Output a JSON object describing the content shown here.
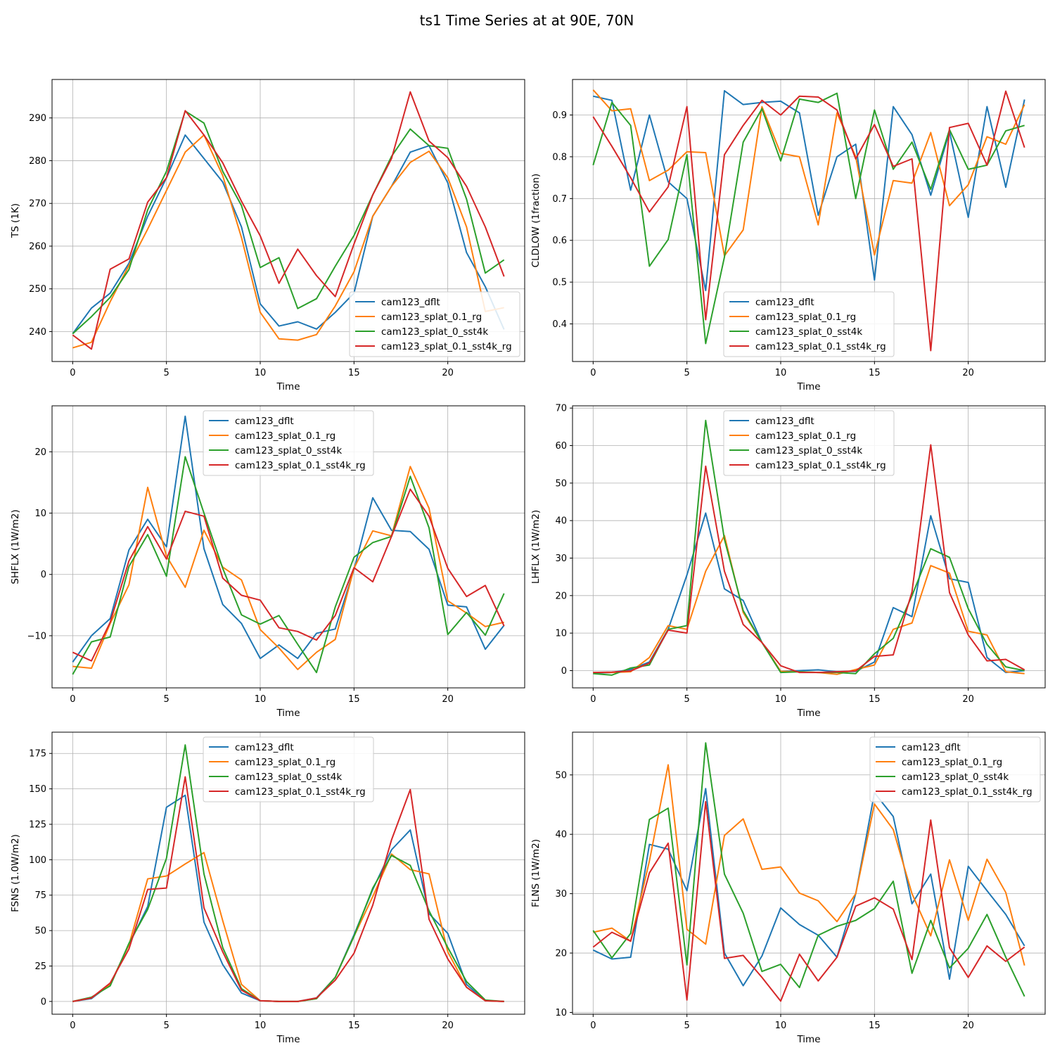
{
  "figure_title": "ts1 Time Series at at 90E, 70N",
  "series_colors": [
    "#1f77b4",
    "#ff7f0e",
    "#2ca02c",
    "#d62728"
  ],
  "chart_data": [
    {
      "type": "line",
      "xlabel": "Time",
      "ylabel": "TS (1K)",
      "xlim": [
        -1.1,
        24.1
      ],
      "ylim": [
        233,
        299
      ],
      "xticks": [
        0,
        5,
        10,
        15,
        20
      ],
      "yticks": [
        240,
        250,
        260,
        270,
        280,
        290
      ],
      "grid": true,
      "legend_loc": "lower-right",
      "x": [
        0,
        1,
        2,
        3,
        4,
        5,
        6,
        7,
        8,
        9,
        10,
        11,
        12,
        13,
        14,
        15,
        16,
        17,
        18,
        19,
        20,
        21,
        22,
        23
      ],
      "series": [
        {
          "name": "cam123_dflt",
          "values": [
            239.5,
            245.5,
            249,
            256,
            267,
            276,
            286,
            280.5,
            275,
            264.5,
            246.5,
            241.3,
            242.3,
            240.6,
            244.5,
            249,
            267,
            274,
            282,
            283.5,
            274.8,
            258.5,
            250.5,
            240.5
          ]
        },
        {
          "name": "cam123_splat_0.1_rg",
          "values": [
            236.2,
            237.5,
            247,
            255.5,
            264,
            273,
            282,
            286,
            276.5,
            262,
            244.5,
            238.3,
            238,
            239.3,
            246,
            254,
            267,
            274,
            279.6,
            282.2,
            276,
            264.5,
            244.7,
            245.6
          ]
        },
        {
          "name": "cam123_splat_0_sst4k",
          "values": [
            239.5,
            243.5,
            248,
            254.5,
            268.5,
            277.5,
            291.6,
            288.8,
            277.5,
            269.5,
            255,
            257.3,
            245.4,
            247.7,
            255.3,
            262.5,
            272,
            281,
            287.4,
            283.5,
            282.9,
            271,
            253.7,
            256.8
          ]
        },
        {
          "name": "cam123_splat_0.1_sst4k_rg",
          "values": [
            239.2,
            235.9,
            254.6,
            257,
            270.3,
            276,
            291.7,
            286,
            279.5,
            270.5,
            262.4,
            251.3,
            259.3,
            253.1,
            248.2,
            260.5,
            272,
            280.5,
            296.1,
            284.6,
            280.7,
            274,
            264.5,
            252.9
          ]
        }
      ]
    },
    {
      "type": "line",
      "xlabel": "Time",
      "ylabel": "CLDLOW (1fraction)",
      "xlim": [
        -1.1,
        24.1
      ],
      "ylim": [
        0.31,
        0.985
      ],
      "xticks": [
        0,
        5,
        10,
        15,
        20
      ],
      "yticks": [
        0.4,
        0.5,
        0.6,
        0.7,
        0.8,
        0.9
      ],
      "grid": true,
      "legend_loc": "lower-center",
      "x": [
        0,
        1,
        2,
        3,
        4,
        5,
        6,
        7,
        8,
        9,
        10,
        11,
        12,
        13,
        14,
        15,
        16,
        17,
        18,
        19,
        20,
        21,
        22,
        23
      ],
      "series": [
        {
          "name": "cam123_dflt",
          "values": [
            0.945,
            0.935,
            0.72,
            0.9,
            0.74,
            0.7,
            0.48,
            0.958,
            0.925,
            0.93,
            0.933,
            0.905,
            0.66,
            0.8,
            0.83,
            0.505,
            0.92,
            0.853,
            0.708,
            0.86,
            0.655,
            0.92,
            0.727,
            0.937
          ]
        },
        {
          "name": "cam123_splat_0.1_rg",
          "values": [
            0.96,
            0.91,
            0.915,
            0.743,
            0.768,
            0.812,
            0.81,
            0.563,
            0.625,
            0.92,
            0.808,
            0.8,
            0.637,
            0.905,
            0.8,
            0.565,
            0.743,
            0.737,
            0.858,
            0.683,
            0.733,
            0.848,
            0.83,
            0.925
          ]
        },
        {
          "name": "cam123_splat_0_sst4k",
          "values": [
            0.78,
            0.93,
            0.875,
            0.538,
            0.602,
            0.805,
            0.353,
            0.56,
            0.835,
            0.915,
            0.79,
            0.938,
            0.93,
            0.952,
            0.7,
            0.912,
            0.77,
            0.835,
            0.722,
            0.865,
            0.77,
            0.78,
            0.862,
            0.875
          ]
        },
        {
          "name": "cam123_splat_0.1_sst4k_rg",
          "values": [
            0.896,
            0.825,
            0.75,
            0.668,
            0.728,
            0.92,
            0.41,
            0.805,
            0.875,
            0.935,
            0.9,
            0.945,
            0.943,
            0.912,
            0.795,
            0.877,
            0.777,
            0.795,
            0.336,
            0.87,
            0.88,
            0.78,
            0.957,
            0.822
          ]
        }
      ]
    },
    {
      "type": "line",
      "xlabel": "Time",
      "ylabel": "SHFLX (1W/m2)",
      "xlim": [
        -1.1,
        24.1
      ],
      "ylim": [
        -18.5,
        27.5
      ],
      "xticks": [
        0,
        5,
        10,
        15,
        20
      ],
      "yticks": [
        -10,
        0,
        10,
        20
      ],
      "ytick_labels": [
        "−10",
        "0",
        "10",
        "20"
      ],
      "grid": true,
      "legend_loc": "upper-center",
      "x": [
        0,
        1,
        2,
        3,
        4,
        5,
        6,
        7,
        8,
        9,
        10,
        11,
        12,
        13,
        14,
        15,
        16,
        17,
        18,
        19,
        20,
        21,
        22,
        23
      ],
      "series": [
        {
          "name": "cam123_dflt",
          "values": [
            -14.3,
            -10,
            -7.2,
            4,
            9,
            4.5,
            25.8,
            4.2,
            -4.9,
            -8,
            -13.7,
            -11.5,
            -13.7,
            -9.6,
            -8.9,
            0.8,
            12.5,
            7.2,
            7,
            4.1,
            -5,
            -5.3,
            -12.2,
            -8.3
          ]
        },
        {
          "name": "cam123_splat_0.1_rg",
          "values": [
            -15,
            -15.3,
            -8,
            -1.7,
            14.2,
            3,
            -2.1,
            7.2,
            1.2,
            -0.9,
            -9,
            -12,
            -15.5,
            -12.7,
            -10.6,
            1,
            7.1,
            6.3,
            17.6,
            10.8,
            -4.3,
            -6.3,
            -8.5,
            -7.8
          ]
        },
        {
          "name": "cam123_splat_0_sst4k",
          "values": [
            -16.3,
            -11,
            -10.2,
            1.3,
            6.5,
            -0.3,
            19.2,
            10,
            1,
            -6.6,
            -8.1,
            -6.7,
            -11.4,
            -16,
            -5.3,
            2.8,
            5.2,
            6.2,
            16,
            7.6,
            -9.8,
            -6.2,
            -9.9,
            -3.1
          ]
        },
        {
          "name": "cam123_splat_0.1_sst4k_rg",
          "values": [
            -12.7,
            -14.1,
            -7.8,
            2.2,
            7.8,
            2.5,
            10.3,
            9.5,
            -0.6,
            -3.4,
            -4.2,
            -8.7,
            -9.3,
            -10.7,
            -6.7,
            1.1,
            -1.2,
            6.2,
            13.9,
            9.5,
            1,
            -3.6,
            -1.8,
            -8.4
          ]
        }
      ]
    },
    {
      "type": "line",
      "xlabel": "Time",
      "ylabel": "LHFLX (1W/m2)",
      "xlim": [
        -1.1,
        24.1
      ],
      "ylim": [
        -4.6,
        70.6
      ],
      "xticks": [
        0,
        5,
        10,
        15,
        20
      ],
      "yticks": [
        0,
        10,
        20,
        30,
        40,
        50,
        60,
        70
      ],
      "grid": true,
      "legend_loc": "upper-center",
      "x": [
        0,
        1,
        2,
        3,
        4,
        5,
        6,
        7,
        8,
        9,
        10,
        11,
        12,
        13,
        14,
        15,
        16,
        17,
        18,
        19,
        20,
        21,
        22,
        23
      ],
      "series": [
        {
          "name": "cam123_dflt",
          "values": [
            -0.7,
            -0.5,
            0.3,
            2.3,
            11,
            25.5,
            42,
            21.8,
            18.7,
            7.5,
            -0.2,
            0,
            0.2,
            -0.3,
            -0.2,
            2.3,
            16.8,
            14.4,
            41.3,
            24.5,
            23.5,
            3.5,
            -0.5,
            0
          ]
        },
        {
          "name": "cam123_splat_0.1_rg",
          "values": [
            -0.5,
            -0.5,
            -0.3,
            3.5,
            12,
            11,
            26.5,
            36,
            15.5,
            7.5,
            -0.2,
            -0.3,
            -0.5,
            -1,
            0.3,
            1.5,
            11,
            12.7,
            28,
            26,
            10.5,
            9.5,
            -0.3,
            -0.8
          ]
        },
        {
          "name": "cam123_splat_0_sst4k",
          "values": [
            -0.8,
            -1.2,
            0.7,
            1.5,
            11,
            12,
            66.7,
            35,
            16,
            7.5,
            -0.5,
            -0.3,
            -0.5,
            -0.5,
            -0.8,
            4.5,
            8.6,
            20,
            32.5,
            30.2,
            16.5,
            7,
            1,
            0
          ]
        },
        {
          "name": "cam123_splat_0.1_sst4k_rg",
          "values": [
            -0.5,
            -0.4,
            -0.1,
            2,
            10.8,
            10,
            54.5,
            26.5,
            12.3,
            7.5,
            1.3,
            -0.5,
            -0.5,
            -0.3,
            -0.1,
            3.8,
            4.2,
            21,
            60.2,
            20.8,
            9.5,
            2.6,
            3,
            0.2
          ]
        }
      ]
    },
    {
      "type": "line",
      "xlabel": "Time",
      "ylabel": "FSNS (1.0W/m2)",
      "xlim": [
        -1.1,
        24.1
      ],
      "ylim": [
        -9,
        190
      ],
      "xticks": [
        0,
        5,
        10,
        15,
        20
      ],
      "yticks": [
        0,
        25,
        50,
        75,
        100,
        125,
        150,
        175
      ],
      "grid": true,
      "legend_loc": "upper-center",
      "x": [
        0,
        1,
        2,
        3,
        4,
        5,
        6,
        7,
        8,
        9,
        10,
        11,
        12,
        13,
        14,
        15,
        16,
        17,
        18,
        19,
        20,
        21,
        22,
        23
      ],
      "series": [
        {
          "name": "cam123_dflt",
          "values": [
            0,
            2,
            12,
            40,
            67,
            137,
            145.5,
            56,
            26,
            6,
            0.5,
            0,
            0,
            2.5,
            17,
            47,
            79,
            107,
            121,
            62,
            48,
            12,
            0.5,
            0
          ]
        },
        {
          "name": "cam123_splat_0.1_rg",
          "values": [
            0,
            2.5,
            12,
            40,
            86.5,
            88.5,
            97,
            105,
            57,
            12,
            0.5,
            0,
            0,
            2,
            17,
            46,
            74,
            104,
            93,
            90,
            35,
            10,
            0.5,
            0
          ]
        },
        {
          "name": "cam123_splat_0_sst4k",
          "values": [
            0,
            3,
            11,
            41,
            65,
            101,
            181,
            90,
            38,
            9,
            0.5,
            0,
            0,
            2,
            17,
            46,
            80,
            103,
            96,
            64,
            38,
            14,
            1,
            0
          ]
        },
        {
          "name": "cam123_splat_0.1_sst4k_rg",
          "values": [
            0,
            2.5,
            13,
            37,
            79,
            80,
            158.5,
            66,
            35,
            8,
            0.5,
            0,
            0,
            2.5,
            15,
            34,
            68,
            114,
            149.5,
            58,
            30,
            10,
            0.5,
            0
          ]
        }
      ]
    },
    {
      "type": "line",
      "xlabel": "Time",
      "ylabel": "FLNS (1W/m2)",
      "xlim": [
        -1.1,
        24.1
      ],
      "ylim": [
        9.7,
        57.2
      ],
      "xticks": [
        0,
        5,
        10,
        15,
        20
      ],
      "yticks": [
        10,
        20,
        30,
        40,
        50
      ],
      "grid": true,
      "legend_loc": "upper-right",
      "x": [
        0,
        1,
        2,
        3,
        4,
        5,
        6,
        7,
        8,
        9,
        10,
        11,
        12,
        13,
        14,
        15,
        16,
        17,
        18,
        19,
        20,
        21,
        22,
        23
      ],
      "series": [
        {
          "name": "cam123_dflt",
          "values": [
            20.5,
            19,
            19.3,
            38.3,
            37.5,
            30.5,
            47.7,
            20,
            14.5,
            19.5,
            27.6,
            24.8,
            23,
            19.3,
            30,
            47,
            43,
            28.3,
            33.3,
            15.6,
            34.6,
            30.5,
            26.5,
            21.2
          ]
        },
        {
          "name": "cam123_splat_0.1_rg",
          "values": [
            23.5,
            24.2,
            22,
            35.5,
            51.7,
            24,
            21.5,
            39.8,
            42.6,
            34.1,
            34.5,
            30.1,
            28.8,
            25.3,
            30,
            45.1,
            40.8,
            30,
            22.9,
            35.7,
            25.5,
            35.8,
            30.2,
            17.9
          ]
        },
        {
          "name": "cam123_splat_0_sst4k",
          "values": [
            23.8,
            19.2,
            23.3,
            42.5,
            44.4,
            18,
            55.4,
            33.3,
            26.7,
            16.9,
            18.1,
            14.2,
            23,
            24.5,
            25.5,
            27.5,
            32.1,
            16.6,
            25.5,
            17.5,
            20.8,
            26.5,
            19.3,
            12.7
          ]
        },
        {
          "name": "cam123_splat_0.1_sst4k_rg",
          "values": [
            21,
            23.5,
            22,
            33.5,
            38.5,
            12.1,
            45.5,
            19.1,
            19.6,
            15.9,
            11.9,
            19.8,
            15.3,
            19.3,
            27.9,
            29.3,
            27.4,
            18.9,
            42.4,
            20.9,
            15.9,
            21.2,
            18.6,
            21
          ]
        }
      ]
    }
  ]
}
